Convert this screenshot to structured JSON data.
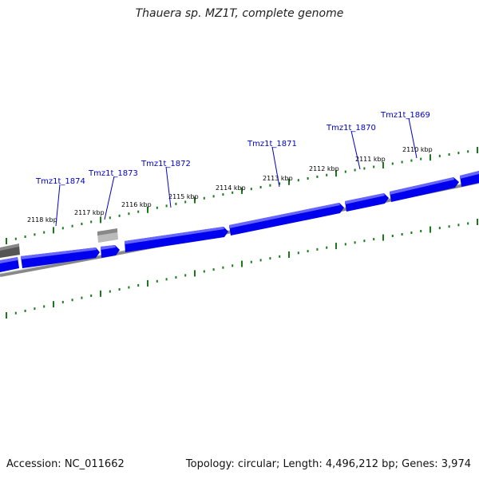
{
  "title": "Thauera sp. MZ1T, complete genome",
  "footer": {
    "accession": "Accession: NC_011662",
    "summary": "Topology: circular; Length: 4,496,212 bp; Genes: 3,974"
  },
  "colors": {
    "gene_fill": "#0000ee",
    "gene_dark": "#0000aa",
    "backbone": "#808080",
    "tick_green": "#1a7a1a",
    "label_blue": "#0000cc",
    "pseudo_gray": "#aaaaaa"
  },
  "ticks": [
    "2110 kbp",
    "2111 kbp",
    "2112 kbp",
    "2113 kbp",
    "2114 kbp",
    "2115 kbp",
    "2116 kbp",
    "2117 kbp",
    "2118 kbp"
  ],
  "genes": [
    {
      "label": "Tmz1t_1869"
    },
    {
      "label": "Tmz1t_1870"
    },
    {
      "label": "Tmz1t_1871"
    },
    {
      "label": "Tmz1t_1872"
    },
    {
      "label": "Tmz1t_1873"
    },
    {
      "label": "Tmz1t_1874"
    }
  ]
}
